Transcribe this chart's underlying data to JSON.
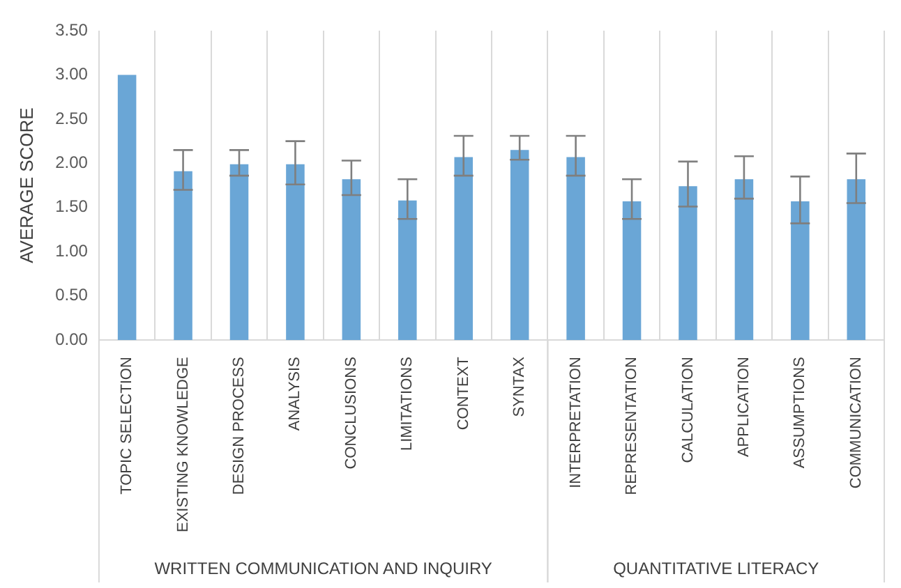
{
  "chart_data": {
    "type": "bar",
    "ylabel": "AVERAGE SCORE",
    "categories": [
      "TOPIC SELECTION",
      "EXISTING KNOWLEDGE",
      "DESIGN PROCESS",
      "ANALYSIS",
      "CONCLUSIONS",
      "LIMITATIONS",
      "CONTEXT",
      "SYNTAX",
      "INTERPRETATION",
      "REPRESENTATION",
      "CALCULATION",
      "APPLICATION",
      "ASSUMPTIONS",
      "COMMUNICATION"
    ],
    "values": [
      3.0,
      1.91,
      1.99,
      1.99,
      1.82,
      1.58,
      2.07,
      2.15,
      2.07,
      1.57,
      1.74,
      1.82,
      1.57,
      1.82
    ],
    "errors": [
      null,
      [
        1.7,
        2.15
      ],
      [
        1.86,
        2.15
      ],
      [
        1.76,
        2.25
      ],
      [
        1.64,
        2.03
      ],
      [
        1.37,
        1.82
      ],
      [
        1.86,
        2.31
      ],
      [
        2.04,
        2.31
      ],
      [
        1.86,
        2.31
      ],
      [
        1.37,
        1.82
      ],
      [
        1.51,
        2.02
      ],
      [
        1.6,
        2.08
      ],
      [
        1.32,
        1.85
      ],
      [
        1.55,
        2.11
      ]
    ],
    "color": "#6aa6d6",
    "ylim": [
      0,
      3.5
    ],
    "yticks": [
      {
        "value": 0,
        "label": "0.00"
      },
      {
        "value": 0.5,
        "label": "0.50"
      },
      {
        "value": 1,
        "label": "1.00"
      },
      {
        "value": 1.5,
        "label": "1.50"
      },
      {
        "value": 2,
        "label": "2.00"
      },
      {
        "value": 2.5,
        "label": "2.50"
      },
      {
        "value": 3,
        "label": "3.00"
      },
      {
        "value": 3.5,
        "label": "3.50"
      }
    ],
    "grid": "x",
    "legend": false,
    "annotations": [
      "WRITTEN COMMUNICATION AND INQUIRY",
      "QUANTITATIVE LITERACY"
    ]
  }
}
